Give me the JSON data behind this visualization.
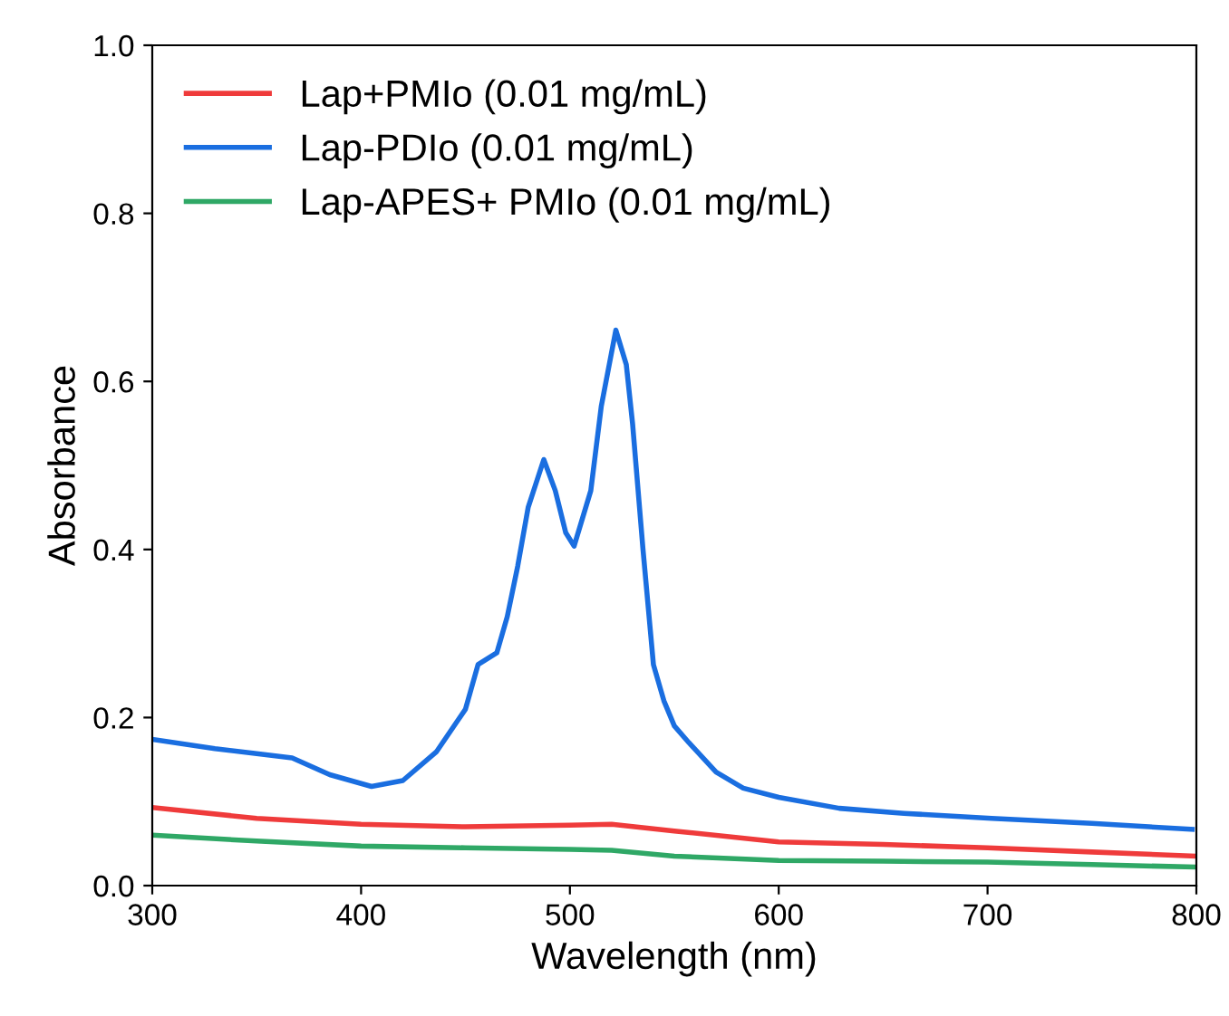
{
  "chart_data": {
    "type": "line",
    "xlabel": "Wavelength (nm)",
    "ylabel": "Absorbance",
    "xlim": [
      300,
      800
    ],
    "ylim": [
      0,
      1.0
    ],
    "xticks": [
      300,
      400,
      500,
      600,
      700,
      800
    ],
    "yticks": [
      {
        "value": 0,
        "label": "0.0"
      },
      {
        "value": 0.2,
        "label": "0.2"
      },
      {
        "value": 0.4,
        "label": "0.4"
      },
      {
        "value": 0.6,
        "label": "0.6"
      },
      {
        "value": 0.8,
        "label": "0.8"
      },
      {
        "value": 1.0,
        "label": "1.0"
      }
    ],
    "grid": false,
    "legend": "top left",
    "marker": "none",
    "line_style": "solid",
    "series": [
      {
        "name": "Lap+PMIo (0.01 mg/mL)",
        "color": "#ef3b3b",
        "x": [
          300,
          350,
          400,
          450,
          500,
          520,
          550,
          600,
          650,
          700,
          750,
          800
        ],
        "values": [
          0.093,
          0.08,
          0.073,
          0.07,
          0.072,
          0.073,
          0.065,
          0.052,
          0.049,
          0.045,
          0.04,
          0.035
        ]
      },
      {
        "name": "Lap-PDIo (0.01 mg/mL)",
        "color": "#1a6ee0",
        "x": [
          300,
          330,
          350,
          367,
          385,
          405,
          420,
          436,
          450,
          456,
          465,
          470,
          475,
          480,
          487.5,
          493,
          498,
          502,
          510,
          515,
          522,
          527,
          530,
          535,
          540,
          545,
          550,
          557,
          570,
          583,
          600,
          629,
          660,
          702,
          750,
          798
        ],
        "values": [
          0.174,
          0.163,
          0.157,
          0.152,
          0.132,
          0.118,
          0.125,
          0.159,
          0.21,
          0.263,
          0.277,
          0.32,
          0.38,
          0.45,
          0.507,
          0.47,
          0.42,
          0.404,
          0.47,
          0.57,
          0.661,
          0.62,
          0.55,
          0.4,
          0.263,
          0.22,
          0.19,
          0.17,
          0.135,
          0.116,
          0.105,
          0.092,
          0.086,
          0.08,
          0.074,
          0.067
        ]
      },
      {
        "name": "Lap-APES+ PMIo (0.01 mg/mL)",
        "color": "#2fa866",
        "x": [
          300,
          350,
          400,
          450,
          500,
          520,
          550,
          600,
          650,
          700,
          750,
          800
        ],
        "values": [
          0.06,
          0.053,
          0.047,
          0.045,
          0.043,
          0.042,
          0.035,
          0.03,
          0.029,
          0.028,
          0.025,
          0.022
        ]
      }
    ]
  }
}
